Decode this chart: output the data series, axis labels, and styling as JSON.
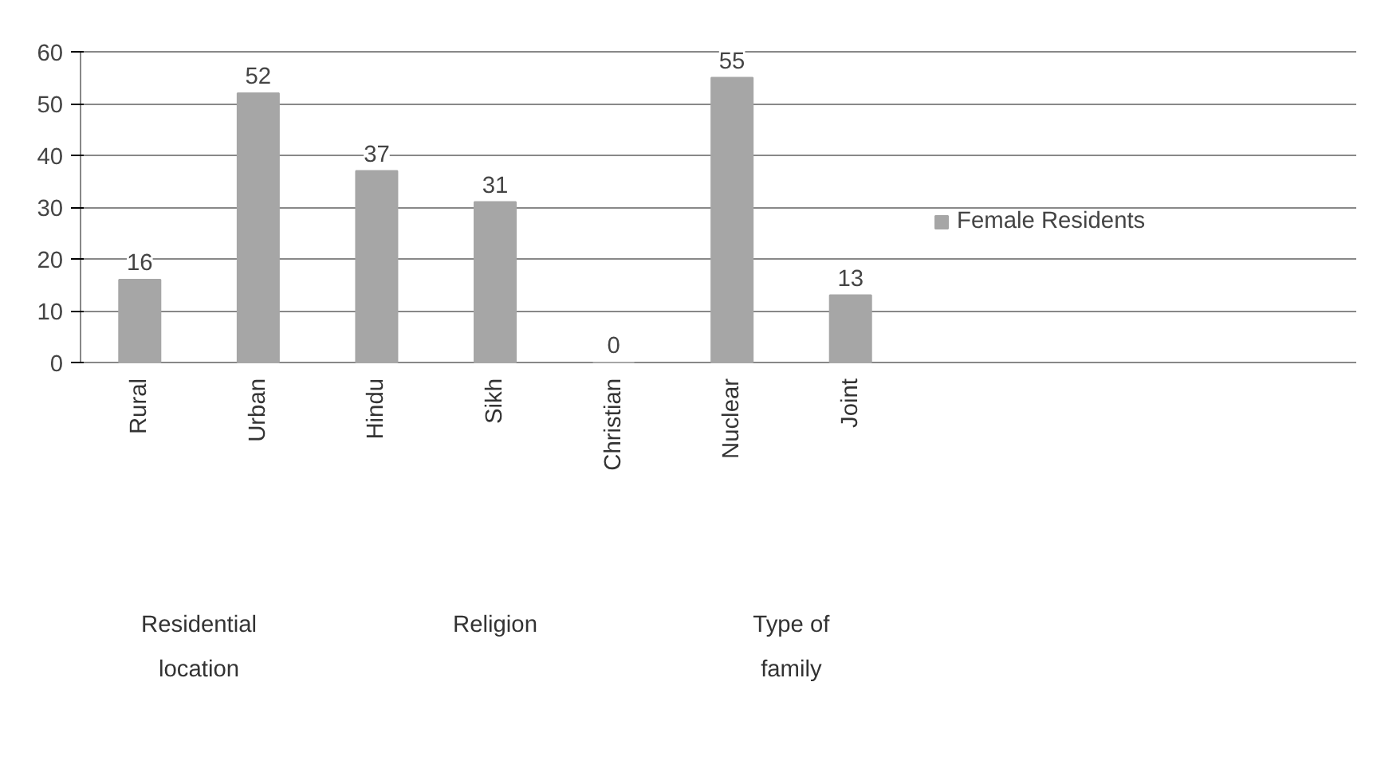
{
  "chart_data": {
    "type": "bar",
    "categories": [
      "Rural",
      "Urban",
      "Hindu",
      "Sikh",
      "Christian",
      "Nuclear",
      "Joint"
    ],
    "series": [
      {
        "name": "Female Residents",
        "color": "#a6a6a6",
        "values": [
          16,
          52,
          37,
          31,
          0,
          55,
          13
        ]
      }
    ],
    "ylim": [
      0,
      60
    ],
    "yticks": [
      0,
      10,
      20,
      30,
      40,
      50,
      60
    ],
    "grid": "y",
    "legend": "right",
    "data_labels": true,
    "annotations": [
      "Residential location",
      "Religion",
      "Type of family"
    ]
  }
}
